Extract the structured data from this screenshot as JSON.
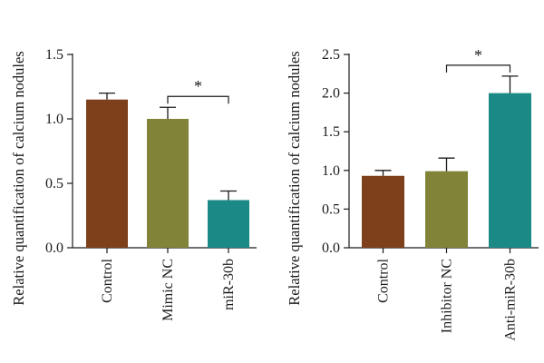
{
  "colors": {
    "control": "#7e3f1b",
    "nc": "#818339",
    "treatment": "#1b8a87",
    "axis": "#1a1a1a"
  },
  "chart_data": [
    {
      "type": "bar",
      "title": "",
      "xlabel": "",
      "ylabel": "Relative quantification of calcium nodules",
      "categories": [
        "Control",
        "Mimic NC",
        "miR-30b"
      ],
      "values": [
        1.15,
        1.0,
        0.37
      ],
      "errors": [
        0.05,
        0.09,
        0.07
      ],
      "bar_colors": [
        "#7e3f1b",
        "#818339",
        "#1b8a87"
      ],
      "ylim": [
        0,
        1.5
      ],
      "yticks": [
        0.0,
        0.5,
        1.0,
        1.5
      ],
      "ytick_labels": [
        "0.0",
        "0.5",
        "1.0",
        "1.5"
      ],
      "grid": false,
      "significance": [
        {
          "from": 1,
          "to": 2,
          "label": "*"
        }
      ]
    },
    {
      "type": "bar",
      "title": "",
      "xlabel": "",
      "ylabel": "Relative quantification of calcium nodules",
      "categories": [
        "Control",
        "Inhibitor NC",
        "Anti-miR-30b"
      ],
      "values": [
        0.93,
        0.99,
        2.0
      ],
      "errors": [
        0.07,
        0.17,
        0.22
      ],
      "bar_colors": [
        "#7e3f1b",
        "#818339",
        "#1b8a87"
      ],
      "ylim": [
        0,
        2.5
      ],
      "yticks": [
        0.0,
        0.5,
        1.0,
        1.5,
        2.0,
        2.5
      ],
      "ytick_labels": [
        "0.0",
        "0.5",
        "1.0",
        "1.5",
        "2.0",
        "2.5"
      ],
      "grid": false,
      "significance": [
        {
          "from": 1,
          "to": 2,
          "label": "*"
        }
      ]
    }
  ]
}
